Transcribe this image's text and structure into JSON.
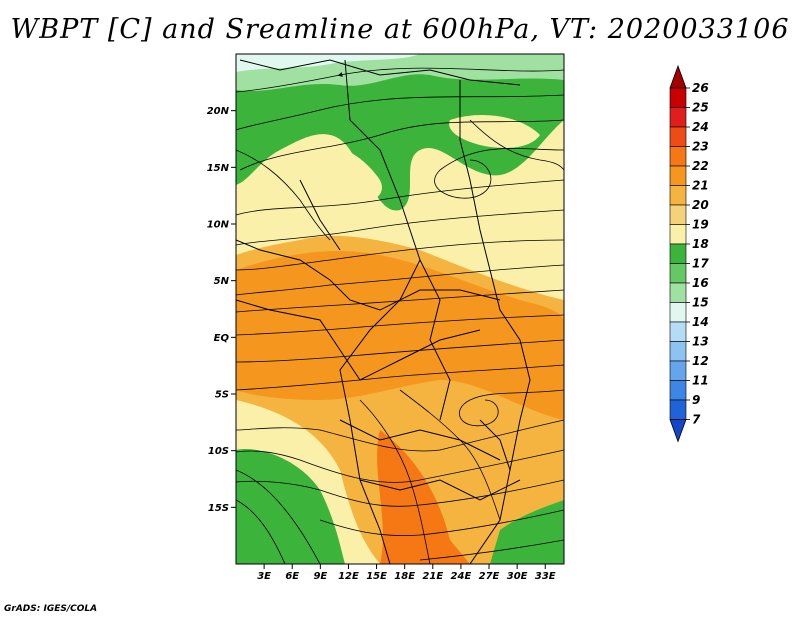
{
  "title": "WBPT [C] and Sreamline at 600hPa, VT: 2020033106",
  "credit": "GrADS: IGES/COLA",
  "map": {
    "lat_labels": [
      "20N",
      "15N",
      "10N",
      "5N",
      "EQ",
      "5S",
      "10S",
      "15S"
    ],
    "lat_values": [
      20,
      15,
      10,
      5,
      0,
      -5,
      -10,
      -15
    ],
    "lon_labels": [
      "3E",
      "6E",
      "9E",
      "12E",
      "15E",
      "18E",
      "21E",
      "24E",
      "27E",
      "30E",
      "33E"
    ],
    "lon_values": [
      3,
      6,
      9,
      12,
      15,
      18,
      21,
      24,
      27,
      30,
      33
    ],
    "lat_range": [
      -20,
      25
    ],
    "lon_range": [
      0,
      35
    ]
  },
  "colorbar": {
    "levels": [
      "26",
      "25",
      "24",
      "23",
      "22",
      "21",
      "20",
      "19",
      "18",
      "17",
      "16",
      "15",
      "14",
      "13",
      "12",
      "11",
      "9",
      "7"
    ],
    "colors": [
      "#a50000",
      "#c80000",
      "#e11e1e",
      "#f04b14",
      "#f57814",
      "#f5961e",
      "#f5b440",
      "#f5d27a",
      "#faf0aa",
      "#3cb43c",
      "#64c864",
      "#a0e0a0",
      "#e0f8f0",
      "#b4dcf5",
      "#8cc3f0",
      "#64a5eb",
      "#3c87e6",
      "#1e64d7",
      "#1446c8"
    ]
  }
}
